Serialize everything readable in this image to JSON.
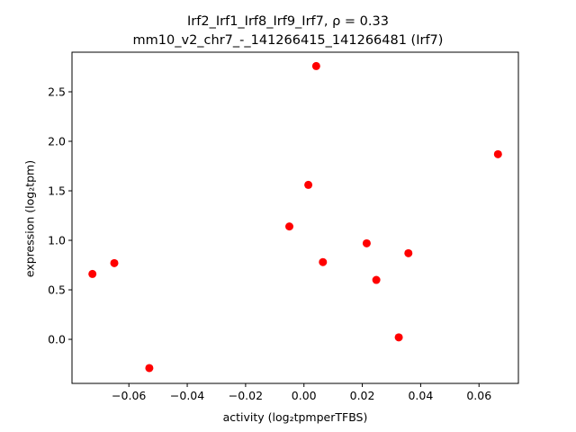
{
  "chart_data": {
    "type": "scatter",
    "title_line1": "Irf2_Irf1_Irf8_Irf9_Irf7, ρ = 0.33",
    "title_line2": "mm10_v2_chr7_-_141266415_141266481 (Irf7)",
    "xlabel": "activity (log₂tpmperTFBS)",
    "ylabel": "expression (log₂tpm)",
    "xlim": [
      -0.0795,
      0.0735
    ],
    "ylim": [
      -0.445,
      2.9
    ],
    "x_ticks": [
      -0.06,
      -0.04,
      -0.02,
      0.0,
      0.02,
      0.04,
      0.06
    ],
    "x_tick_labels": [
      "−0.06",
      "−0.04",
      "−0.02",
      "0.00",
      "0.02",
      "0.04",
      "0.06"
    ],
    "y_ticks": [
      0.0,
      0.5,
      1.0,
      1.5,
      2.0,
      2.5
    ],
    "y_tick_labels": [
      "0.0",
      "0.5",
      "1.0",
      "1.5",
      "2.0",
      "2.5"
    ],
    "marker_color": "#ff0000",
    "points": [
      {
        "x": -0.0725,
        "y": 0.66
      },
      {
        "x": -0.065,
        "y": 0.77
      },
      {
        "x": -0.053,
        "y": -0.29
      },
      {
        "x": -0.005,
        "y": 1.14
      },
      {
        "x": 0.0015,
        "y": 1.56
      },
      {
        "x": 0.0042,
        "y": 2.76
      },
      {
        "x": 0.0065,
        "y": 0.78
      },
      {
        "x": 0.0215,
        "y": 0.97
      },
      {
        "x": 0.0248,
        "y": 0.6
      },
      {
        "x": 0.0325,
        "y": 0.02
      },
      {
        "x": 0.0358,
        "y": 0.87
      },
      {
        "x": 0.0665,
        "y": 1.87
      }
    ]
  }
}
